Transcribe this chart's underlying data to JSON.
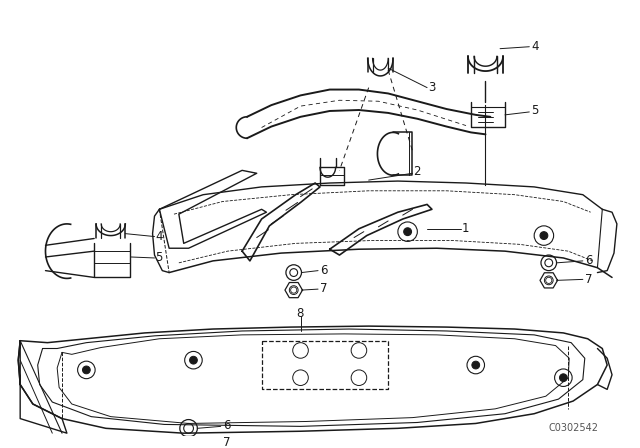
{
  "background_color": "#ffffff",
  "line_color": "#1a1a1a",
  "part_number": "C0302542",
  "fig_width": 6.4,
  "fig_height": 4.48,
  "dpi": 100
}
